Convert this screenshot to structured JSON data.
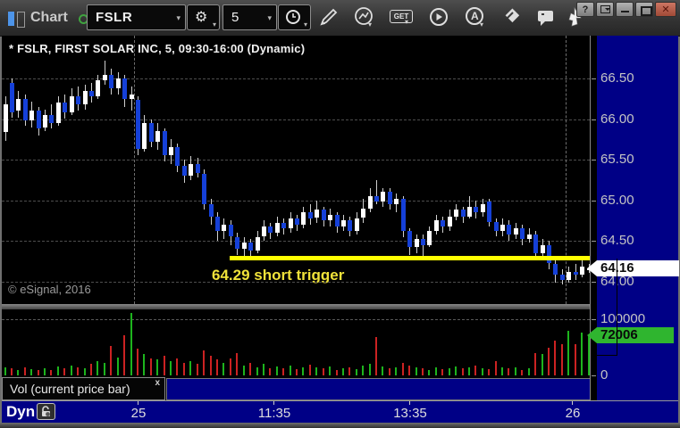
{
  "window": {
    "title": "Chart",
    "help_label": "?",
    "buttons": [
      "help",
      "dock",
      "minimize",
      "maximize",
      "close"
    ]
  },
  "toolbar": {
    "symbol_value": "FSLR",
    "interval_value": "5",
    "get_label": "GET",
    "auto_label": "A",
    "icons": [
      "symbol-settings-gear-icon",
      "interval-clock-icon",
      "pencil-icon",
      "trend-tool-icon",
      "get-data-icon",
      "play-icon",
      "auto-a-icon",
      "eraser-icon",
      "comment-icon",
      "cursor-icon"
    ]
  },
  "chart": {
    "header": "* FSLR, FIRST SOLAR INC, 5, 09:30-16:00 (Dynamic)",
    "copyright": "© eSignal, 2016",
    "annotation": {
      "label": "64.29 short trigger",
      "price": 64.29
    },
    "price_pointer": "64.16",
    "volume_pointer": "72006",
    "tab": {
      "label": "Vol (current price bar)",
      "close_label": "x"
    },
    "time_mode_label": "Dyn"
  },
  "chart_data": {
    "type": "candlestick+volume",
    "symbol": "FSLR",
    "interval_minutes": 5,
    "session": "09:30-16:00",
    "price_axis_ticks": [
      "66.50",
      "66.00",
      "65.50",
      "65.00",
      "64.50",
      "64.00"
    ],
    "volume_axis_ticks": [
      {
        "label": "100000",
        "value": 100000
      },
      {
        "label": "0",
        "value": 0
      }
    ],
    "last_price": 64.16,
    "last_volume": 72006,
    "short_trigger_price": 64.29,
    "day_separator_indices": [
      19.5,
      84.5
    ],
    "time_ticks": [
      {
        "label": "25",
        "index": 20
      },
      {
        "label": "11:35",
        "index": 40.5
      },
      {
        "label": "13:35",
        "index": 61
      },
      {
        "label": "26",
        "index": 85.5
      }
    ],
    "candles_ohlc": [
      [
        65.84,
        66.28,
        65.73,
        66.18
      ],
      [
        66.45,
        66.5,
        66.02,
        66.08
      ],
      [
        66.1,
        66.35,
        66.02,
        66.25
      ],
      [
        66.25,
        66.3,
        65.92,
        65.98
      ],
      [
        65.98,
        66.22,
        65.9,
        66.1
      ],
      [
        66.1,
        66.15,
        65.8,
        65.88
      ],
      [
        65.9,
        66.12,
        65.85,
        66.05
      ],
      [
        66.05,
        66.18,
        65.88,
        65.95
      ],
      [
        65.95,
        66.28,
        65.92,
        66.2
      ],
      [
        66.2,
        66.3,
        66.0,
        66.08
      ],
      [
        66.08,
        66.38,
        66.05,
        66.28
      ],
      [
        66.28,
        66.4,
        66.1,
        66.18
      ],
      [
        66.18,
        66.42,
        66.12,
        66.35
      ],
      [
        66.35,
        66.45,
        66.2,
        66.28
      ],
      [
        66.28,
        66.55,
        66.25,
        66.48
      ],
      [
        66.48,
        66.72,
        66.42,
        66.55
      ],
      [
        66.55,
        66.62,
        66.3,
        66.38
      ],
      [
        66.38,
        66.58,
        66.3,
        66.5
      ],
      [
        66.5,
        66.55,
        66.15,
        66.25
      ],
      [
        66.25,
        66.4,
        66.1,
        66.3
      ],
      [
        66.24,
        66.28,
        65.55,
        65.63
      ],
      [
        65.63,
        66.05,
        65.6,
        65.95
      ],
      [
        65.95,
        66.0,
        65.65,
        65.72
      ],
      [
        65.72,
        65.95,
        65.62,
        65.85
      ],
      [
        65.85,
        65.88,
        65.48,
        65.55
      ],
      [
        65.55,
        65.75,
        65.45,
        65.65
      ],
      [
        65.65,
        65.7,
        65.35,
        65.42
      ],
      [
        65.42,
        65.5,
        65.22,
        65.3
      ],
      [
        65.3,
        65.55,
        65.25,
        65.45
      ],
      [
        65.45,
        65.52,
        65.28,
        65.33
      ],
      [
        65.33,
        65.38,
        64.88,
        64.95
      ],
      [
        64.95,
        65.02,
        64.7,
        64.8
      ],
      [
        64.8,
        64.85,
        64.5,
        64.62
      ],
      [
        64.62,
        64.78,
        64.52,
        64.7
      ],
      [
        64.7,
        64.75,
        64.45,
        64.55
      ],
      [
        64.55,
        64.6,
        64.32,
        64.4
      ],
      [
        64.4,
        64.55,
        64.28,
        64.48
      ],
      [
        64.48,
        64.52,
        64.26,
        64.38
      ],
      [
        64.38,
        64.62,
        64.35,
        64.55
      ],
      [
        64.55,
        64.75,
        64.5,
        64.68
      ],
      [
        64.68,
        64.72,
        64.52,
        64.6
      ],
      [
        64.6,
        64.8,
        64.55,
        64.72
      ],
      [
        64.72,
        64.78,
        64.58,
        64.65
      ],
      [
        64.65,
        64.85,
        64.6,
        64.78
      ],
      [
        64.78,
        64.82,
        64.62,
        64.7
      ],
      [
        64.7,
        64.92,
        64.65,
        64.85
      ],
      [
        64.85,
        64.95,
        64.7,
        64.78
      ],
      [
        64.78,
        65.0,
        64.72,
        64.88
      ],
      [
        64.88,
        64.92,
        64.68,
        64.75
      ],
      [
        64.75,
        64.9,
        64.68,
        64.82
      ],
      [
        64.82,
        64.85,
        64.6,
        64.68
      ],
      [
        64.68,
        64.82,
        64.62,
        64.75
      ],
      [
        64.75,
        64.8,
        64.55,
        64.62
      ],
      [
        64.62,
        64.85,
        64.58,
        64.78
      ],
      [
        64.78,
        65.02,
        64.72,
        64.9
      ],
      [
        64.9,
        65.15,
        64.85,
        65.05
      ],
      [
        65.05,
        65.25,
        64.95,
        64.98
      ],
      [
        64.98,
        65.15,
        64.92,
        65.1
      ],
      [
        65.1,
        65.15,
        64.88,
        64.95
      ],
      [
        64.95,
        65.08,
        64.85,
        65.02
      ],
      [
        65.02,
        65.05,
        64.55,
        64.62
      ],
      [
        64.62,
        64.65,
        64.32,
        64.42
      ],
      [
        64.42,
        64.58,
        64.35,
        64.52
      ],
      [
        64.52,
        64.58,
        64.3,
        64.45
      ],
      [
        64.45,
        64.68,
        64.42,
        64.62
      ],
      [
        64.62,
        64.82,
        64.58,
        64.75
      ],
      [
        64.75,
        64.8,
        64.6,
        64.68
      ],
      [
        64.68,
        64.88,
        64.62,
        64.8
      ],
      [
        64.8,
        64.95,
        64.75,
        64.88
      ],
      [
        64.88,
        64.92,
        64.72,
        64.8
      ],
      [
        64.8,
        65.05,
        64.78,
        64.92
      ],
      [
        64.92,
        65.0,
        64.78,
        64.85
      ],
      [
        64.85,
        65.02,
        64.8,
        64.95
      ],
      [
        64.98,
        65.02,
        64.68,
        64.73
      ],
      [
        64.73,
        64.78,
        64.55,
        64.62
      ],
      [
        64.62,
        64.78,
        64.55,
        64.7
      ],
      [
        64.7,
        64.75,
        64.5,
        64.58
      ],
      [
        64.58,
        64.72,
        64.52,
        64.65
      ],
      [
        64.65,
        64.7,
        64.45,
        64.52
      ],
      [
        64.52,
        64.65,
        64.48,
        64.58
      ],
      [
        64.58,
        64.62,
        64.28,
        64.35
      ],
      [
        64.35,
        64.52,
        64.26,
        64.45
      ],
      [
        64.45,
        64.5,
        64.15,
        64.22
      ],
      [
        64.22,
        64.28,
        63.98,
        64.08
      ],
      [
        64.08,
        64.15,
        63.96,
        64.02
      ],
      [
        64.02,
        64.18,
        63.98,
        64.12
      ],
      [
        64.12,
        64.22,
        64.02,
        64.08
      ],
      [
        64.08,
        64.3,
        64.05,
        64.18
      ],
      [
        64.14,
        64.22,
        64.1,
        64.16
      ]
    ],
    "volumes": [
      15000,
      12000,
      10000,
      14000,
      11000,
      9000,
      13000,
      10000,
      16000,
      12000,
      18000,
      14000,
      12000,
      20000,
      26000,
      22000,
      52000,
      32000,
      71000,
      111000,
      48000,
      38000,
      30000,
      28000,
      35000,
      25000,
      30000,
      22000,
      26000,
      20000,
      45000,
      35000,
      28000,
      22000,
      30000,
      40000,
      18000,
      22000,
      15000,
      20000,
      12000,
      16000,
      13000,
      18000,
      11000,
      15000,
      19000,
      14000,
      12000,
      16000,
      10000,
      13000,
      15000,
      11000,
      17000,
      20000,
      68000,
      16000,
      12000,
      15000,
      22000,
      18000,
      14000,
      12000,
      10000,
      15000,
      11000,
      13000,
      16000,
      12000,
      14000,
      18000,
      13000,
      11000,
      25000,
      15000,
      12000,
      14000,
      10000,
      12000,
      40000,
      38000,
      50000,
      62000,
      55000,
      79000,
      55000,
      76000,
      72006
    ],
    "colors": {
      "up_candle": "#ffffff",
      "down_candle": "#1540d8",
      "wick": "#cfcfcf",
      "up_volume": "#1db41d",
      "down_volume": "#cc2222",
      "axis_bg": "#000086",
      "trigger": "#ffff00",
      "pointer_price_bg": "#ffffff",
      "pointer_volume_bg": "#2fb52f"
    }
  }
}
